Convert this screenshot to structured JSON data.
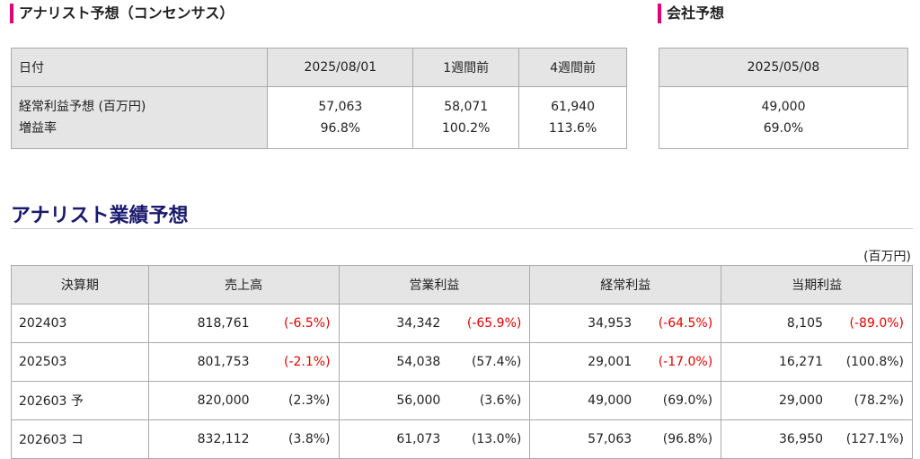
{
  "consensus": {
    "title": "アナリスト予想（コンセンサス）",
    "headers": [
      "日付",
      "2025/08/01",
      "1週間前",
      "4週間前"
    ],
    "row_labels": [
      "経常利益予想 (百万円)",
      "増益率"
    ],
    "columns": [
      {
        "value": "57,063",
        "rate": "96.8%"
      },
      {
        "value": "58,071",
        "rate": "100.2%"
      },
      {
        "value": "61,940",
        "rate": "113.6%"
      }
    ]
  },
  "company": {
    "title": "会社予想",
    "date": "2025/05/08",
    "value": "49,000",
    "rate": "69.0%"
  },
  "performance": {
    "title": "アナリスト業績予想",
    "unit": "(百万円)",
    "headers": [
      "決算期",
      "売上高",
      "営業利益",
      "経常利益",
      "当期利益"
    ],
    "rows": [
      {
        "period": "202403",
        "cells": [
          {
            "v": "818,761",
            "c": "(-6.5%)",
            "neg": true
          },
          {
            "v": "34,342",
            "c": "(-65.9%)",
            "neg": true
          },
          {
            "v": "34,953",
            "c": "(-64.5%)",
            "neg": true
          },
          {
            "v": "8,105",
            "c": "(-89.0%)",
            "neg": true
          }
        ]
      },
      {
        "period": "202503",
        "cells": [
          {
            "v": "801,753",
            "c": "(-2.1%)",
            "neg": true
          },
          {
            "v": "54,038",
            "c": "(57.4%)",
            "neg": false
          },
          {
            "v": "29,001",
            "c": "(-17.0%)",
            "neg": true
          },
          {
            "v": "16,271",
            "c": "(100.8%)",
            "neg": false
          }
        ]
      },
      {
        "period": "202603 予",
        "cells": [
          {
            "v": "820,000",
            "c": "(2.3%)",
            "neg": false
          },
          {
            "v": "56,000",
            "c": "(3.6%)",
            "neg": false
          },
          {
            "v": "49,000",
            "c": "(69.0%)",
            "neg": false
          },
          {
            "v": "29,000",
            "c": "(78.2%)",
            "neg": false
          }
        ]
      },
      {
        "period": "202603 コ",
        "cells": [
          {
            "v": "832,112",
            "c": "(3.8%)",
            "neg": false
          },
          {
            "v": "61,073",
            "c": "(13.0%)",
            "neg": false
          },
          {
            "v": "57,063",
            "c": "(96.8%)",
            "neg": false
          },
          {
            "v": "36,950",
            "c": "(127.1%)",
            "neg": false
          }
        ]
      }
    ]
  },
  "colors": {
    "accent_bar": "#e0007a",
    "title_navy": "#1a1a6e",
    "negative": "#e60000",
    "header_bg": "#e5e5e5"
  }
}
